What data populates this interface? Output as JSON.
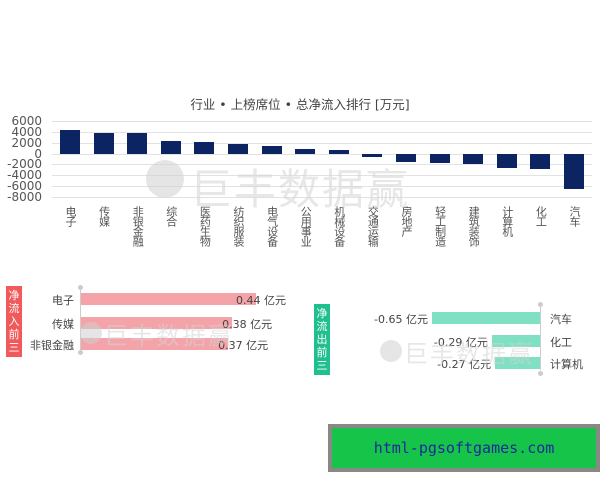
{
  "chart_data": [
    {
      "type": "bar",
      "title": "行业 • 上榜席位 • 总净流入排行 [万元]",
      "xlabel": "",
      "ylabel": "",
      "ylim": [
        -8000,
        6000
      ],
      "yticks": [
        6000,
        4000,
        2000,
        0,
        -2000,
        -4000,
        -6000,
        -8000
      ],
      "grid": true,
      "bar_color": "#0c2461",
      "categories": [
        "电子",
        "传媒",
        "非银金融",
        "综合",
        "医药生物",
        "纺织服装",
        "电气设备",
        "公用事业",
        "机械设备",
        "交通运输",
        "房地产",
        "轻工制造",
        "建筑装饰",
        "计算机",
        "化工",
        "汽车"
      ],
      "values": [
        4400,
        3800,
        3700,
        2300,
        2200,
        1800,
        1400,
        900,
        600,
        -700,
        -1600,
        -1700,
        -2000,
        -2700,
        -2900,
        -6500
      ]
    },
    {
      "type": "bar",
      "orientation": "horizontal",
      "title": "净流入前三",
      "unit": "亿元",
      "bar_color": "#f4a3a8",
      "categories": [
        "电子",
        "传媒",
        "非银金融"
      ],
      "values": [
        0.44,
        0.38,
        0.37
      ],
      "value_labels": [
        "0.44 亿元",
        "0.38 亿元",
        "0.37 亿元"
      ]
    },
    {
      "type": "bar",
      "orientation": "horizontal",
      "title": "净流出前三",
      "unit": "亿元",
      "bar_color": "#7fe0c4",
      "categories": [
        "汽车",
        "化工",
        "计算机"
      ],
      "values": [
        -0.65,
        -0.29,
        -0.27
      ],
      "value_labels": [
        "-0.65 亿元",
        "-0.29 亿元",
        "-0.27 亿元"
      ]
    }
  ],
  "main_chart": {
    "title": "行业 • 上榜席位 • 总净流入排行 [万元]",
    "yticks": [
      "6000",
      "4000",
      "2000",
      "0",
      "-2000",
      "-4000",
      "-6000",
      "-8000"
    ],
    "categories": [
      "电子",
      "传媒",
      "非银金融",
      "综合",
      "医药生物",
      "纺织服装",
      "电气设备",
      "公用事业",
      "机械设备",
      "交通运输",
      "房地产",
      "轻工制造",
      "建筑装饰",
      "计算机",
      "化工",
      "汽车"
    ],
    "values": [
      4400,
      3800,
      3700,
      2300,
      2200,
      1800,
      1400,
      900,
      600,
      -700,
      -1600,
      -1700,
      -2000,
      -2700,
      -2900,
      -6500
    ]
  },
  "inflow": {
    "tag": "净流入前三",
    "color": "#f05a5a",
    "bar_color": "#f4a3a8",
    "items": [
      {
        "name": "电子",
        "value": 0.44,
        "label": "0.44 亿元"
      },
      {
        "name": "传媒",
        "value": 0.38,
        "label": "0.38 亿元"
      },
      {
        "name": "非银金融",
        "value": 0.37,
        "label": "0.37 亿元"
      }
    ]
  },
  "outflow": {
    "tag": "净流出前三",
    "color": "#1fbf8f",
    "bar_color": "#7fe0c4",
    "items": [
      {
        "name": "汽车",
        "value": -0.65,
        "label": "-0.65 亿元"
      },
      {
        "name": "化工",
        "value": -0.29,
        "label": "-0.29 亿元"
      },
      {
        "name": "计算机",
        "value": -0.27,
        "label": "-0.27 亿元"
      }
    ]
  },
  "watermark": {
    "text": "巨丰数据赢"
  },
  "footer": {
    "text": "html-pgsoftgames.com"
  }
}
